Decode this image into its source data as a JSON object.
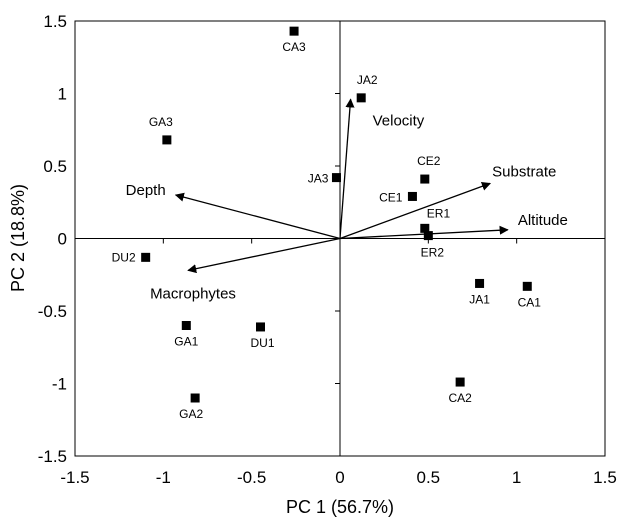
{
  "chart_data": {
    "type": "scatter",
    "title": "",
    "xlabel": "PC 1 (56.7%)",
    "ylabel": "PC 2 (18.8%)",
    "xlim": [
      -1.5,
      1.5
    ],
    "ylim": [
      -1.5,
      1.5
    ],
    "xticks": [
      -1.5,
      -1,
      -0.5,
      0,
      0.5,
      1,
      1.5
    ],
    "yticks": [
      -1.5,
      -1,
      -0.5,
      0,
      0.5,
      1,
      1.5
    ],
    "xtick_labels": [
      "-1.5",
      "-1",
      "-0.5",
      "0",
      "0.5",
      "1",
      "1.5"
    ],
    "ytick_labels": [
      "-1.5",
      "-1",
      "-0.5",
      "0",
      "0.5",
      "1",
      "1.5"
    ],
    "grid": false,
    "sites": [
      {
        "name": "CA3",
        "x": -0.26,
        "y": 1.43
      },
      {
        "name": "JA2",
        "x": 0.12,
        "y": 0.97
      },
      {
        "name": "GA3",
        "x": -0.98,
        "y": 0.68
      },
      {
        "name": "JA3",
        "x": -0.02,
        "y": 0.42
      },
      {
        "name": "CE2",
        "x": 0.48,
        "y": 0.41
      },
      {
        "name": "CE1",
        "x": 0.41,
        "y": 0.29
      },
      {
        "name": "ER1",
        "x": 0.48,
        "y": 0.07
      },
      {
        "name": "ER2",
        "x": 0.5,
        "y": 0.02
      },
      {
        "name": "DU2",
        "x": -1.1,
        "y": -0.13
      },
      {
        "name": "JA1",
        "x": 0.79,
        "y": -0.31
      },
      {
        "name": "CA1",
        "x": 1.06,
        "y": -0.33
      },
      {
        "name": "GA1",
        "x": -0.87,
        "y": -0.6
      },
      {
        "name": "DU1",
        "x": -0.45,
        "y": -0.61
      },
      {
        "name": "CA2",
        "x": 0.68,
        "y": -0.99
      },
      {
        "name": "GA2",
        "x": -0.82,
        "y": -1.1
      }
    ],
    "vectors": [
      {
        "name": "Velocity",
        "x": 0.06,
        "y": 0.96
      },
      {
        "name": "Substrate",
        "x": 0.85,
        "y": 0.38
      },
      {
        "name": "Altitude",
        "x": 0.95,
        "y": 0.06
      },
      {
        "name": "Depth",
        "x": -0.93,
        "y": 0.3
      },
      {
        "name": "Macrophytes",
        "x": -0.86,
        "y": -0.22
      }
    ]
  }
}
